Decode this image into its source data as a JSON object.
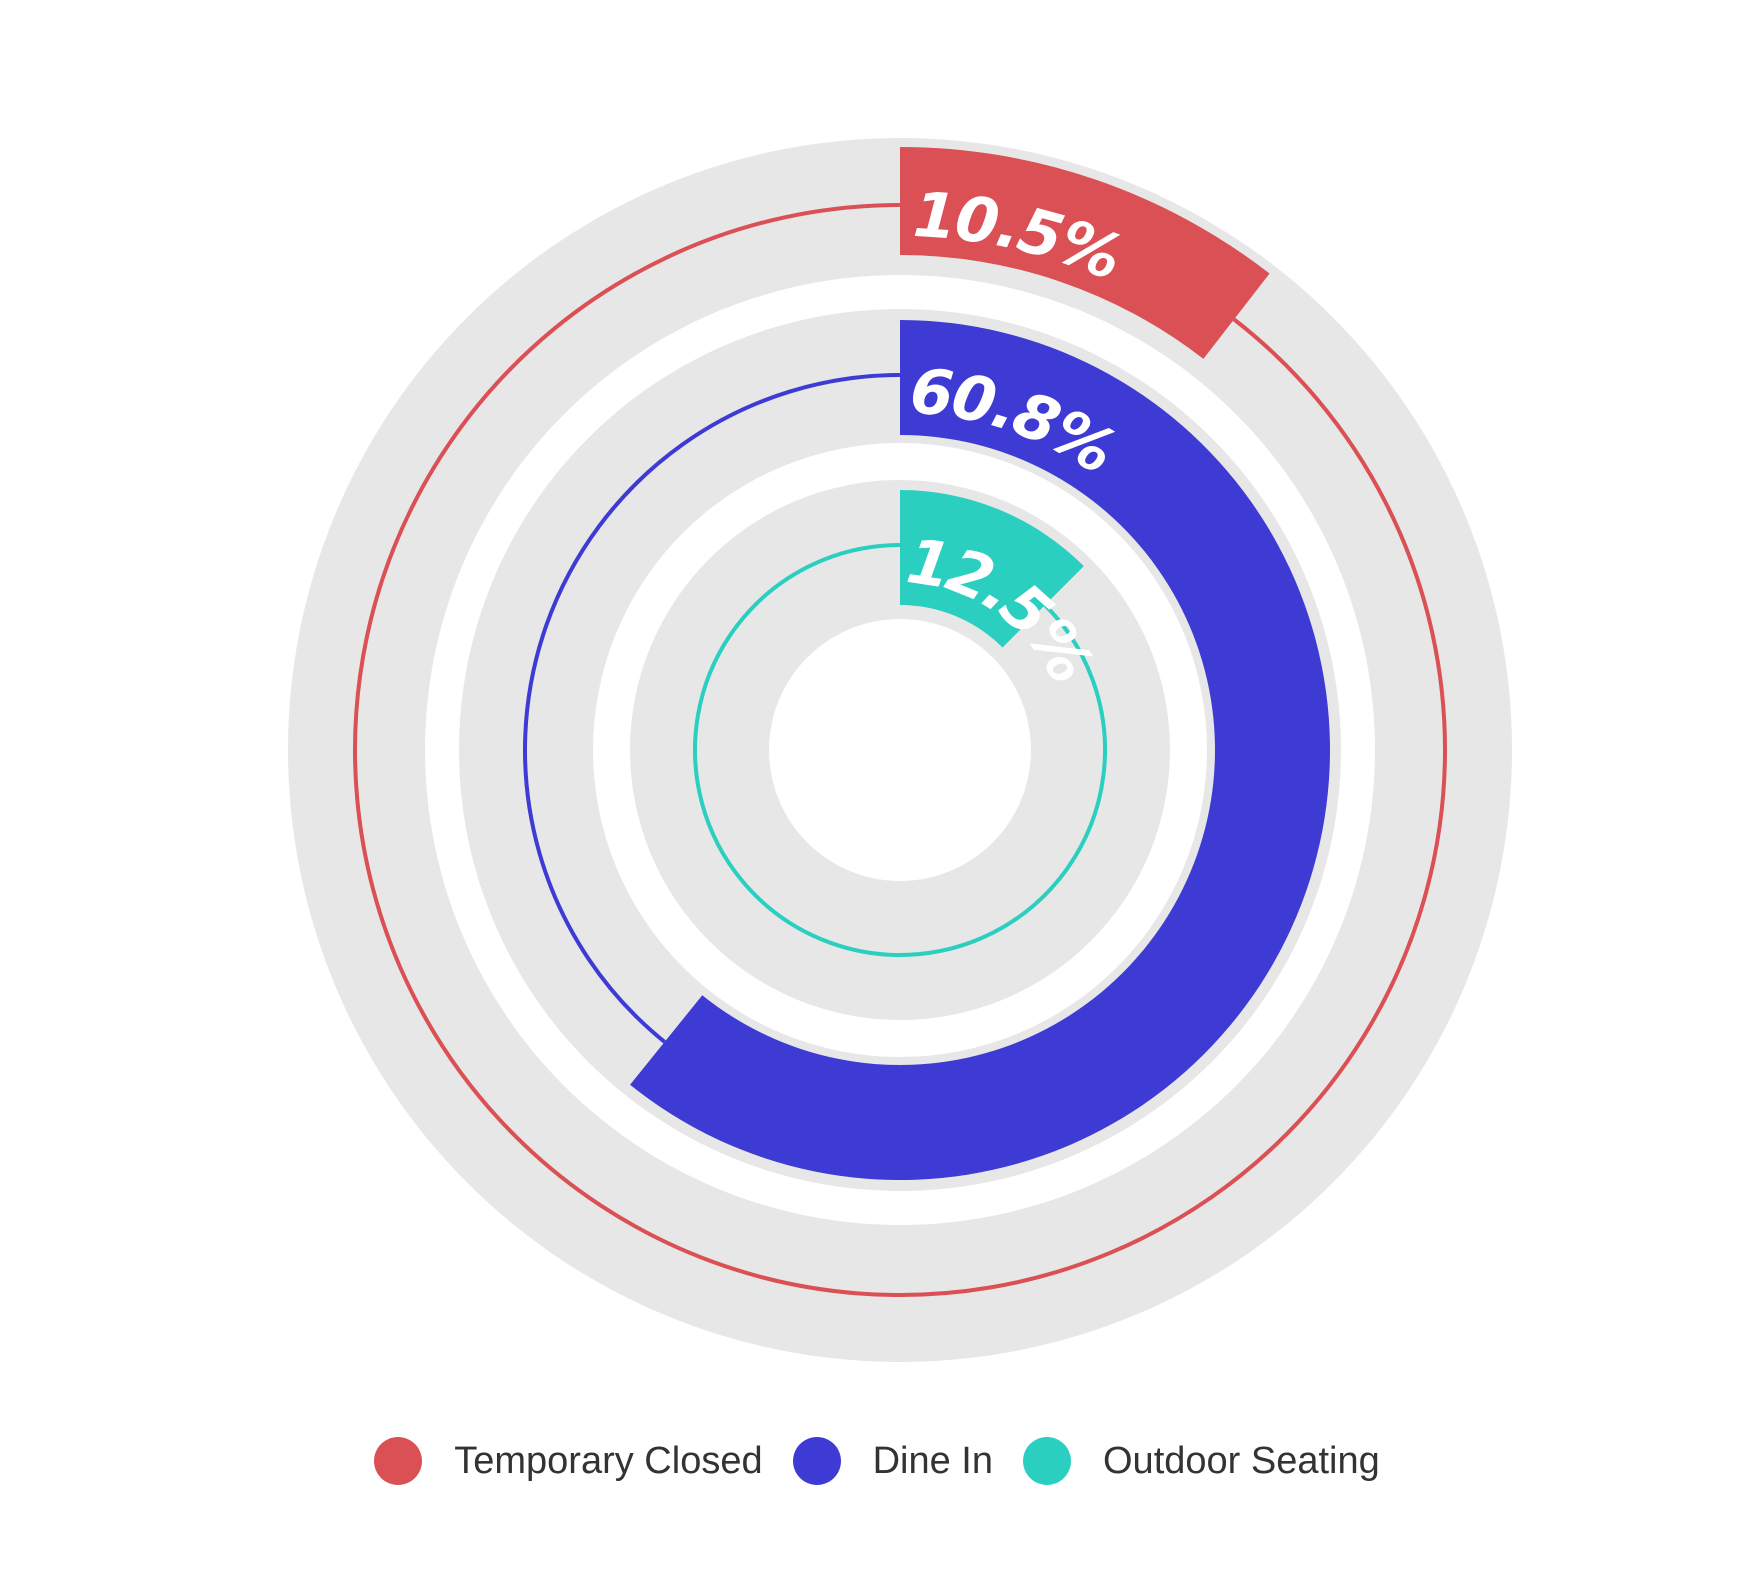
{
  "chart_data": {
    "type": "radial-bar",
    "max": 100,
    "start": "top",
    "direction": "clockwise",
    "series": [
      {
        "name": "Temporary Closed",
        "value": 10.5,
        "label": "10.5%",
        "color": "#DA5054"
      },
      {
        "name": "Dine In",
        "value": 60.8,
        "label": "60.8%",
        "color": "#3E3BD4"
      },
      {
        "name": "Outdoor Seating",
        "value": 12.5,
        "label": "12.5%",
        "color": "#2ACFC0"
      }
    ],
    "track_color": "#E7E7E7",
    "legend_position": "bottom"
  },
  "legend": [
    {
      "label": "Temporary Closed",
      "color": "#DA5054"
    },
    {
      "label": "Dine In",
      "color": "#3E3BD4"
    },
    {
      "label": "Outdoor Seating",
      "color": "#2ACFC0"
    }
  ]
}
